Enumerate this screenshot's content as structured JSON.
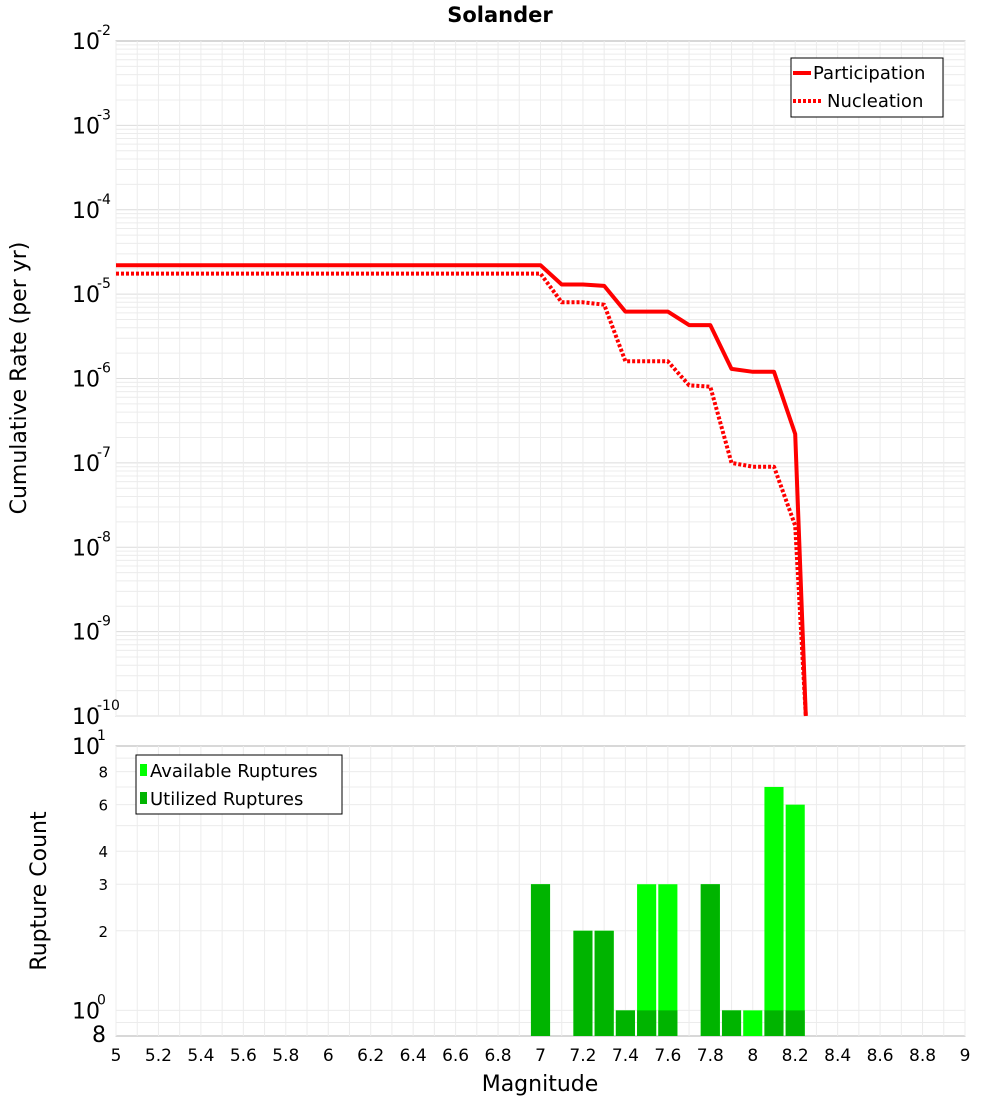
{
  "chart_data": [
    {
      "type": "line",
      "title": "Solander",
      "xlabel": "",
      "ylabel": "Cumulative Rate (per yr)",
      "yscale": "log",
      "xlim": [
        5,
        9
      ],
      "ylim": [
        1e-10,
        0.01
      ],
      "y_tick_labels": [
        {
          "base": "10",
          "exp": "-2"
        },
        {
          "base": "10",
          "exp": "-3"
        },
        {
          "base": "10",
          "exp": "-4"
        },
        {
          "base": "10",
          "exp": "-5"
        },
        {
          "base": "10",
          "exp": "-6"
        },
        {
          "base": "10",
          "exp": "-7"
        },
        {
          "base": "10",
          "exp": "-8"
        },
        {
          "base": "10",
          "exp": "-9"
        },
        {
          "base": "10",
          "exp": "-10"
        }
      ],
      "grid": true,
      "legend_position": "top-right",
      "series": [
        {
          "name": "Participation",
          "color": "#ff0000",
          "style": "solid",
          "x": [
            5.0,
            7.0,
            7.1,
            7.2,
            7.3,
            7.4,
            7.5,
            7.6,
            7.7,
            7.8,
            7.9,
            8.0,
            8.1,
            8.2,
            8.25
          ],
          "y": [
            2.2e-05,
            2.2e-05,
            1.3e-05,
            1.3e-05,
            1.25e-05,
            6.2e-06,
            6.2e-06,
            6.2e-06,
            4.3e-06,
            4.3e-06,
            1.3e-06,
            1.2e-06,
            1.2e-06,
            2.2e-07,
            1e-10
          ]
        },
        {
          "name": "Nucleation",
          "color": "#ff0000",
          "style": "dotted",
          "x": [
            5.0,
            7.0,
            7.1,
            7.2,
            7.3,
            7.4,
            7.5,
            7.6,
            7.7,
            7.8,
            7.9,
            8.0,
            8.1,
            8.2,
            8.25
          ],
          "y": [
            1.75e-05,
            1.75e-05,
            8e-06,
            8e-06,
            7.5e-06,
            1.6e-06,
            1.6e-06,
            1.6e-06,
            8.3e-07,
            8e-07,
            1e-07,
            9e-08,
            9e-08,
            1.8e-08,
            1e-10
          ]
        }
      ]
    },
    {
      "type": "bar",
      "xlabel": "Magnitude",
      "ylabel": "Rupture Count",
      "yscale": "log",
      "xlim": [
        5,
        9
      ],
      "ylim": [
        0.8,
        10
      ],
      "x_tick_labels": [
        "5",
        "5.2",
        "5.4",
        "5.6",
        "5.8",
        "6",
        "6.2",
        "6.4",
        "6.6",
        "6.8",
        "7",
        "7.2",
        "7.4",
        "7.6",
        "7.8",
        "8",
        "8.2",
        "8.4",
        "8.6",
        "8.8",
        "9"
      ],
      "y_tick_labels": [
        {
          "value": 10,
          "base": "10",
          "exp": "1"
        },
        {
          "value": 8,
          "label": "8"
        },
        {
          "value": 6,
          "label": "6"
        },
        {
          "value": 4,
          "label": "4"
        },
        {
          "value": 3,
          "label": "3"
        },
        {
          "value": 2,
          "label": "2"
        },
        {
          "value": 1,
          "base": "10",
          "exp": "0"
        },
        {
          "value": 0.8,
          "label": "8"
        }
      ],
      "grid": true,
      "legend_position": "top-left",
      "bar_width": 0.09,
      "series": [
        {
          "name": "Available Ruptures",
          "color": "#00ff00",
          "x": [
            7.0,
            7.2,
            7.3,
            7.4,
            7.5,
            7.6,
            7.8,
            7.9,
            8.0,
            8.1,
            8.2
          ],
          "values": [
            3,
            2,
            2,
            1,
            3,
            3,
            3,
            1,
            1,
            7,
            6
          ]
        },
        {
          "name": "Utilized Ruptures",
          "color": "#00b400",
          "x": [
            7.0,
            7.2,
            7.3,
            7.4,
            7.5,
            7.6,
            7.8,
            7.9,
            8.0,
            8.1,
            8.2
          ],
          "values": [
            3,
            2,
            2,
            1,
            1,
            1,
            3,
            1,
            0,
            1,
            1
          ]
        }
      ]
    }
  ]
}
